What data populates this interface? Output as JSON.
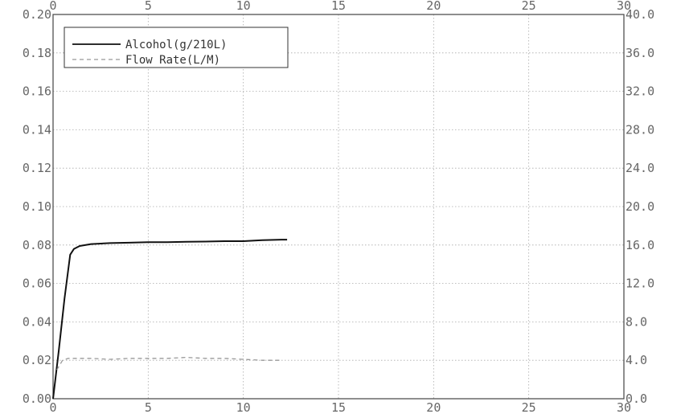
{
  "chart_data": {
    "type": "line",
    "title": "",
    "xlabel": "",
    "ylabel": "",
    "x_ticks": [
      "0",
      "5",
      "10",
      "15",
      "20",
      "25",
      "30"
    ],
    "y_left_ticks": [
      "0.00",
      "0.02",
      "0.04",
      "0.06",
      "0.08",
      "0.10",
      "0.12",
      "0.14",
      "0.16",
      "0.18",
      "0.20"
    ],
    "y_right_ticks": [
      "0.0",
      "4.0",
      "8.0",
      "12.0",
      "16.0",
      "20.0",
      "24.0",
      "28.0",
      "32.0",
      "36.0",
      "40.0"
    ],
    "xlim": [
      0,
      30
    ],
    "ylim_left": [
      0,
      0.2
    ],
    "ylim_right": [
      0,
      40
    ],
    "grid": true,
    "legend_position": "top-left",
    "series": [
      {
        "name": "Alcohol(g/210L)",
        "axis": "left",
        "style": "solid",
        "color": "#111111",
        "x": [
          0,
          0.3,
          0.6,
          0.9,
          1.1,
          1.4,
          2.0,
          3.0,
          4.0,
          5.0,
          6.0,
          7.0,
          8.0,
          9.0,
          10.0,
          11.0,
          12.0,
          12.3
        ],
        "y": [
          0.0,
          0.025,
          0.052,
          0.075,
          0.078,
          0.0795,
          0.0805,
          0.081,
          0.0812,
          0.0815,
          0.0815,
          0.0817,
          0.0818,
          0.082,
          0.082,
          0.0825,
          0.0828,
          0.0828
        ]
      },
      {
        "name": "Flow Rate(L/M)",
        "axis": "right",
        "style": "dashed",
        "color": "#999999",
        "x": [
          0.2,
          0.5,
          0.8,
          1.0,
          2.0,
          3.0,
          4.0,
          5.0,
          6.0,
          7.0,
          8.0,
          9.0,
          10.0,
          11.0,
          12.0
        ],
        "y": [
          3.0,
          4.0,
          4.2,
          4.2,
          4.2,
          4.1,
          4.2,
          4.2,
          4.2,
          4.3,
          4.2,
          4.2,
          4.1,
          4.0,
          4.0
        ]
      }
    ]
  }
}
